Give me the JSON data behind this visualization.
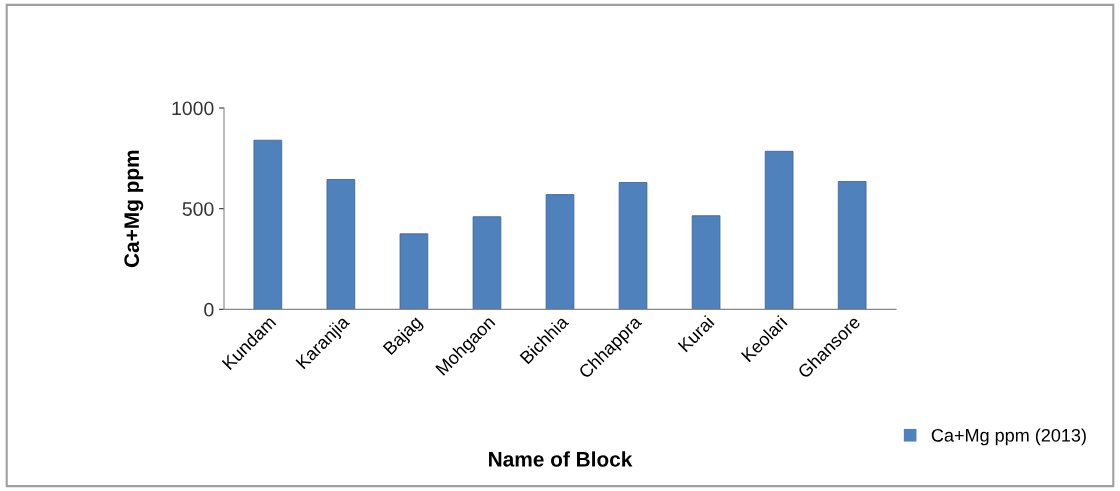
{
  "chart_data": {
    "type": "bar",
    "xlabel": "Name of Block",
    "ylabel": "Ca+Mg ppm",
    "categories": [
      "Kundam",
      "Karanjia",
      "Bajag",
      "Mohgaon",
      "Bichhia",
      "Chhappra",
      "Kurai",
      "Keolari",
      "Ghansore"
    ],
    "series": [
      {
        "name": "Ca+Mg ppm (2013)",
        "color": "#4f81bd",
        "values": [
          840,
          645,
          375,
          460,
          570,
          630,
          465,
          785,
          635
        ]
      }
    ],
    "ylim": [
      0,
      1000
    ],
    "yticks": [
      0,
      500,
      1000
    ],
    "grid": false,
    "legend": "bottom right"
  }
}
